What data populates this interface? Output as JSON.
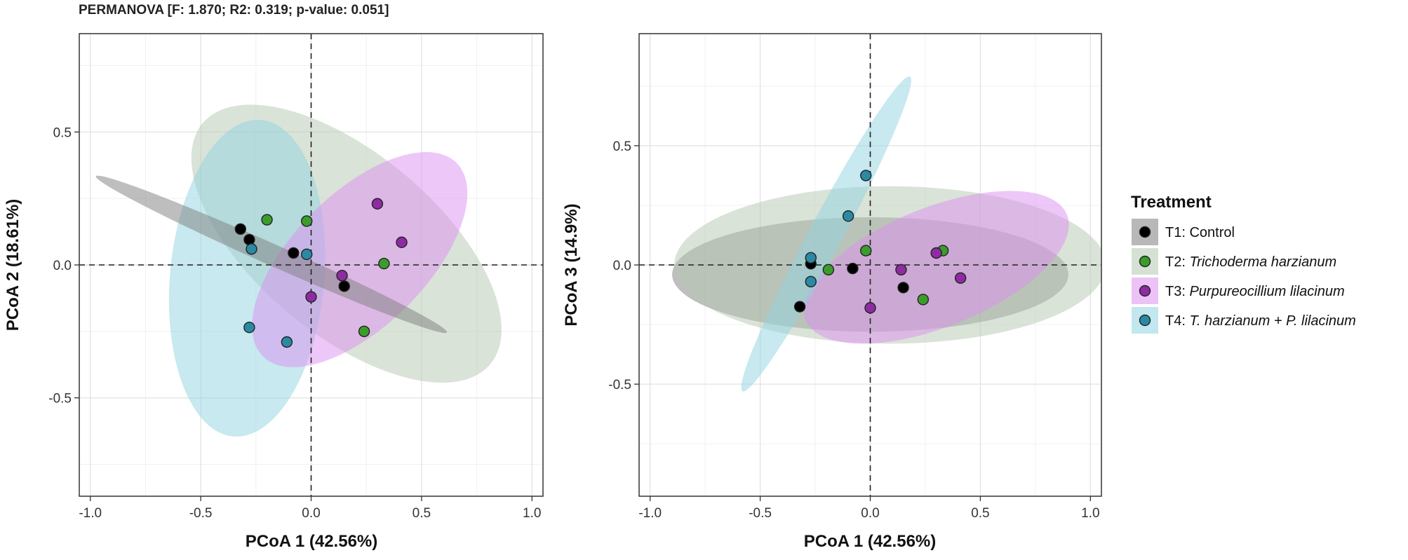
{
  "chart_data": {
    "type": "scatter",
    "title": "PERMANOVA [F: 1.870; R2: 0.319; p-value: 0.051]",
    "groups": [
      {
        "name": "T1",
        "fill": "#000000",
        "ellipse": "#7d7d7d"
      },
      {
        "name": "T2",
        "fill": "#3a9d2b",
        "ellipse": "#b5c8b2"
      },
      {
        "name": "T3",
        "fill": "#8e2ba3",
        "ellipse": "#dc8ff0"
      },
      {
        "name": "T4",
        "fill": "#2b8aa3",
        "ellipse": "#90d4e0"
      }
    ],
    "legend": {
      "title": "Treatment",
      "items": [
        {
          "group": "T1",
          "prefix": "T1: ",
          "label": "Control"
        },
        {
          "group": "T2",
          "prefix": "T2: ",
          "label": "Trichoderma harzianum"
        },
        {
          "group": "T3",
          "prefix": "T3: ",
          "label": "Purpureocillium lilacinum"
        },
        {
          "group": "T4",
          "prefix": "T4: ",
          "label": "T. harzianum + P. lilacinum"
        }
      ]
    },
    "panels": [
      {
        "id": "left",
        "xlabel": "PCoA 1 (42.56%)",
        "ylabel": "PCoA 2 (18.61%)",
        "xlim": [
          -1.05,
          1.05
        ],
        "ylim": [
          -0.87,
          0.87
        ],
        "xticks": [
          -1.0,
          -0.5,
          0.0,
          0.5,
          1.0
        ],
        "xtick_labels": [
          "-1.0",
          "-0.5",
          "0.0",
          "0.5",
          "1.0"
        ],
        "yticks": [
          -0.5,
          0.0,
          0.5
        ],
        "ytick_labels": [
          "-0.5",
          "0.0",
          "0.5"
        ],
        "ellipses": [
          {
            "group": "T2",
            "cx": 0.16,
            "cy": 0.08,
            "rx": 0.85,
            "ry": 0.34,
            "angle_deg": -40
          },
          {
            "group": "T4",
            "cx": -0.29,
            "cy": -0.05,
            "rx": 0.72,
            "ry": 0.29,
            "angle_deg": -95
          },
          {
            "group": "T3",
            "cx": 0.22,
            "cy": 0.02,
            "rx": 0.62,
            "ry": 0.25,
            "angle_deg": 45
          },
          {
            "group": "T1",
            "cx": -0.18,
            "cy": 0.04,
            "rx": 0.87,
            "ry": 0.04,
            "angle_deg": -24
          }
        ],
        "points": [
          {
            "group": "T1",
            "x": -0.32,
            "y": 0.135
          },
          {
            "group": "T1",
            "x": -0.28,
            "y": 0.095
          },
          {
            "group": "T1",
            "x": -0.08,
            "y": 0.045
          },
          {
            "group": "T1",
            "x": 0.15,
            "y": -0.08
          },
          {
            "group": "T2",
            "x": -0.2,
            "y": 0.17
          },
          {
            "group": "T2",
            "x": -0.02,
            "y": 0.165
          },
          {
            "group": "T2",
            "x": 0.33,
            "y": 0.005
          },
          {
            "group": "T2",
            "x": 0.24,
            "y": -0.25
          },
          {
            "group": "T3",
            "x": 0.3,
            "y": 0.23
          },
          {
            "group": "T3",
            "x": 0.41,
            "y": 0.085
          },
          {
            "group": "T3",
            "x": 0.14,
            "y": -0.04
          },
          {
            "group": "T3",
            "x": 0.0,
            "y": -0.12
          },
          {
            "group": "T4",
            "x": -0.27,
            "y": 0.06
          },
          {
            "group": "T4",
            "x": -0.02,
            "y": 0.04
          },
          {
            "group": "T4",
            "x": -0.28,
            "y": -0.235
          },
          {
            "group": "T4",
            "x": -0.11,
            "y": -0.29
          }
        ]
      },
      {
        "id": "right",
        "xlabel": "PCoA 1 (42.56%)",
        "ylabel": "PCoA 3 (14.9%)",
        "xlim": [
          -1.05,
          1.05
        ],
        "ylim": [
          -0.97,
          0.97
        ],
        "xticks": [
          -1.0,
          -0.5,
          0.0,
          0.5,
          1.0
        ],
        "xtick_labels": [
          "-1.0",
          "-0.5",
          "0.0",
          "0.5",
          "1.0"
        ],
        "yticks": [
          -0.5,
          0.0,
          0.5
        ],
        "ytick_labels": [
          "-0.5",
          "0.0",
          "0.5"
        ],
        "ellipses": [
          {
            "group": "T1",
            "cx": 0.0,
            "cy": -0.04,
            "rx": 0.9,
            "ry": 0.24,
            "angle_deg": 0
          },
          {
            "group": "T2",
            "cx": 0.09,
            "cy": 0.0,
            "rx": 0.98,
            "ry": 0.33,
            "angle_deg": 0
          },
          {
            "group": "T3",
            "cx": 0.3,
            "cy": -0.01,
            "rx": 0.64,
            "ry": 0.25,
            "angle_deg": 22
          },
          {
            "group": "T4",
            "cx": -0.2,
            "cy": 0.13,
            "rx": 0.81,
            "ry": 0.07,
            "angle_deg": 62
          }
        ],
        "points": [
          {
            "group": "T1",
            "x": -0.27,
            "y": 0.005
          },
          {
            "group": "T1",
            "x": -0.08,
            "y": -0.015
          },
          {
            "group": "T1",
            "x": 0.15,
            "y": -0.095
          },
          {
            "group": "T1",
            "x": -0.32,
            "y": -0.175
          },
          {
            "group": "T2",
            "x": -0.19,
            "y": -0.02
          },
          {
            "group": "T2",
            "x": -0.02,
            "y": 0.06
          },
          {
            "group": "T2",
            "x": 0.33,
            "y": 0.06
          },
          {
            "group": "T2",
            "x": 0.24,
            "y": -0.145
          },
          {
            "group": "T3",
            "x": 0.14,
            "y": -0.02
          },
          {
            "group": "T3",
            "x": 0.3,
            "y": 0.05
          },
          {
            "group": "T3",
            "x": 0.41,
            "y": -0.055
          },
          {
            "group": "T3",
            "x": 0.0,
            "y": -0.18
          },
          {
            "group": "T4",
            "x": -0.02,
            "y": 0.375
          },
          {
            "group": "T4",
            "x": -0.1,
            "y": 0.205
          },
          {
            "group": "T4",
            "x": -0.27,
            "y": 0.03
          },
          {
            "group": "T4",
            "x": -0.27,
            "y": -0.07
          }
        ]
      }
    ]
  }
}
